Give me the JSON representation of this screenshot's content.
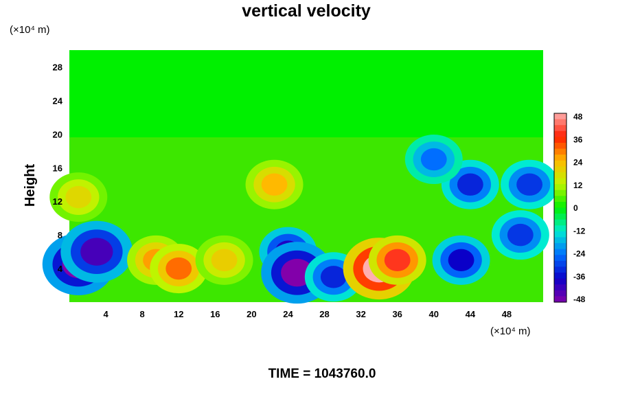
{
  "chart_data": {
    "type": "heatmap",
    "title": "vertical velocity",
    "ylabel": "Height",
    "y_unit": "(×10⁴ m)",
    "x_unit": "(×10⁴ m)",
    "footer": "TIME = 1043760.0",
    "xlim": [
      0,
      52
    ],
    "ylim": [
      0,
      30
    ],
    "x_ticks": [
      "4",
      "8",
      "12",
      "16",
      "20",
      "24",
      "28",
      "32",
      "36",
      "40",
      "44",
      "48"
    ],
    "y_ticks": [
      "4",
      "8",
      "12",
      "16",
      "20",
      "24",
      "28"
    ],
    "colorbar": {
      "min": -48,
      "max": 48,
      "ticks": [
        "48",
        "36",
        "24",
        "12",
        "0",
        "-12",
        "-24",
        "-36",
        "-48"
      ]
    },
    "features": [
      {
        "x": 1.0,
        "y": 4.5,
        "value": -48
      },
      {
        "x": 3.0,
        "y": 6.0,
        "value": -42
      },
      {
        "x": 9.5,
        "y": 5.0,
        "value": 26
      },
      {
        "x": 12.0,
        "y": 4.0,
        "value": 30
      },
      {
        "x": 17.0,
        "y": 5.0,
        "value": 20
      },
      {
        "x": 22.5,
        "y": 14.0,
        "value": 24
      },
      {
        "x": 1.0,
        "y": 12.5,
        "value": 18
      },
      {
        "x": 24.0,
        "y": 6.0,
        "value": -38
      },
      {
        "x": 25.0,
        "y": 3.5,
        "value": -48
      },
      {
        "x": 29.0,
        "y": 3.0,
        "value": -32
      },
      {
        "x": 34.0,
        "y": 4.0,
        "value": 48
      },
      {
        "x": 36.0,
        "y": 5.0,
        "value": 38
      },
      {
        "x": 43.0,
        "y": 5.0,
        "value": -36
      },
      {
        "x": 44.0,
        "y": 14.0,
        "value": -32
      },
      {
        "x": 50.5,
        "y": 14.0,
        "value": -30
      },
      {
        "x": 40.0,
        "y": 17.0,
        "value": -24
      },
      {
        "x": 49.5,
        "y": 8.0,
        "value": -30
      }
    ]
  }
}
